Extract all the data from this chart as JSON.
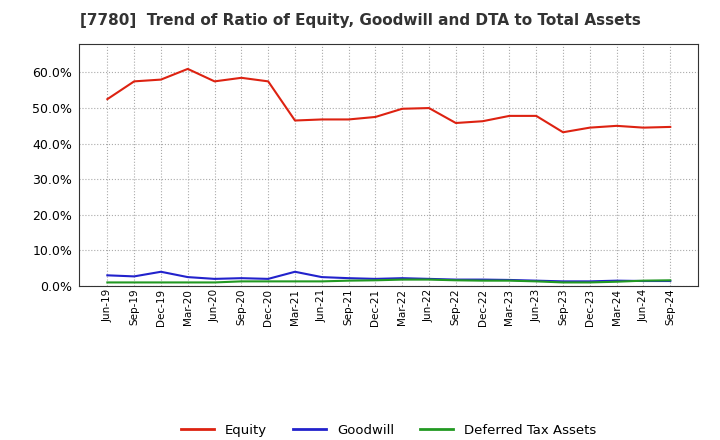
{
  "title": "[7780]  Trend of Ratio of Equity, Goodwill and DTA to Total Assets",
  "x_labels": [
    "Jun-19",
    "Sep-19",
    "Dec-19",
    "Mar-20",
    "Jun-20",
    "Sep-20",
    "Dec-20",
    "Mar-21",
    "Jun-21",
    "Sep-21",
    "Dec-21",
    "Mar-22",
    "Jun-22",
    "Sep-22",
    "Dec-22",
    "Mar-23",
    "Jun-23",
    "Sep-23",
    "Dec-23",
    "Mar-24",
    "Jun-24",
    "Sep-24"
  ],
  "equity": [
    0.525,
    0.575,
    0.58,
    0.61,
    0.575,
    0.585,
    0.575,
    0.465,
    0.468,
    0.468,
    0.475,
    0.498,
    0.5,
    0.458,
    0.463,
    0.478,
    0.478,
    0.432,
    0.445,
    0.45,
    0.445,
    0.447
  ],
  "goodwill": [
    0.03,
    0.027,
    0.04,
    0.025,
    0.02,
    0.022,
    0.02,
    0.04,
    0.025,
    0.022,
    0.02,
    0.022,
    0.02,
    0.018,
    0.018,
    0.017,
    0.015,
    0.013,
    0.013,
    0.015,
    0.014,
    0.014
  ],
  "dta": [
    0.01,
    0.01,
    0.01,
    0.01,
    0.01,
    0.013,
    0.013,
    0.013,
    0.013,
    0.015,
    0.016,
    0.018,
    0.018,
    0.016,
    0.015,
    0.015,
    0.013,
    0.01,
    0.01,
    0.012,
    0.015,
    0.016
  ],
  "equity_color": "#dd2211",
  "goodwill_color": "#2222cc",
  "dta_color": "#229922",
  "background_color": "#ffffff",
  "grid_color": "#aaaaaa",
  "ylim": [
    0.0,
    0.68
  ],
  "yticks": [
    0.0,
    0.1,
    0.2,
    0.3,
    0.4,
    0.5,
    0.6
  ],
  "legend_labels": [
    "Equity",
    "Goodwill",
    "Deferred Tax Assets"
  ]
}
